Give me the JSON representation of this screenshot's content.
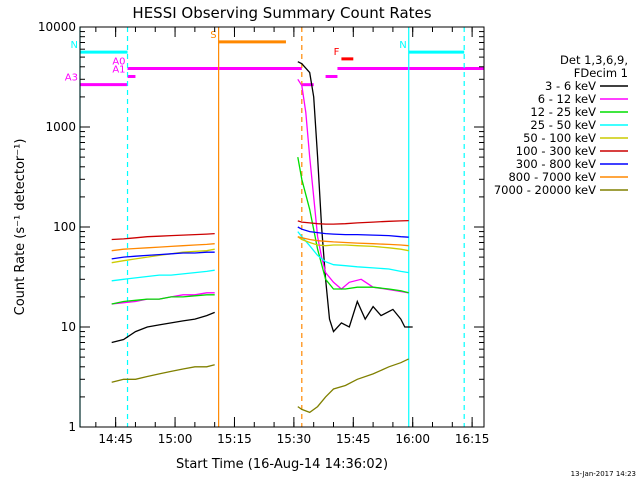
{
  "chart_data": {
    "type": "line",
    "title": "HESSI Observing Summary Count Rates",
    "xlabel": "Start Time (16-Aug-14 14:36:02)",
    "ylabel": "Count Rate (s⁻¹ detector⁻¹)",
    "yscale": "log",
    "xlim": [
      "14:36",
      "16:18"
    ],
    "ylim": [
      1,
      10000
    ],
    "x_ticks": [
      "14:45",
      "15:00",
      "15:15",
      "15:30",
      "15:45",
      "16:00",
      "16:15"
    ],
    "y_ticks": [
      "1",
      "10",
      "100",
      "1000",
      "10000"
    ],
    "footer_date": "13-Jan-2017 14:23",
    "legend": {
      "header": [
        "Det 1,3,6,9,",
        "FDecim 1"
      ],
      "placement": "right"
    },
    "series": [
      {
        "name": "3 - 6 keV",
        "color": "#000000",
        "points": [
          [
            "14:44",
            7
          ],
          [
            "14:47",
            7.5
          ],
          [
            "14:50",
            9
          ],
          [
            "14:53",
            10
          ],
          [
            "14:56",
            10.5
          ],
          [
            "14:59",
            11
          ],
          [
            "15:02",
            11.5
          ],
          [
            "15:05",
            12
          ],
          [
            "15:08",
            13
          ],
          [
            "15:10",
            14
          ],
          [
            "15:31",
            4500
          ],
          [
            "15:32",
            4300
          ],
          [
            "15:34",
            3500
          ],
          [
            "15:35",
            2000
          ],
          [
            "15:36",
            500
          ],
          [
            "15:37",
            100
          ],
          [
            "15:38",
            30
          ],
          [
            "15:39",
            12
          ],
          [
            "15:40",
            9
          ],
          [
            "15:42",
            11
          ],
          [
            "15:44",
            10
          ],
          [
            "15:46",
            18
          ],
          [
            "15:48",
            12
          ],
          [
            "15:50",
            16
          ],
          [
            "15:52",
            13
          ],
          [
            "15:55",
            15
          ],
          [
            "15:57",
            12
          ],
          [
            "15:58",
            10
          ],
          [
            "16:00",
            10
          ]
        ]
      },
      {
        "name": "6 - 12 keV",
        "color": "#ff00ff",
        "points": [
          [
            "14:44",
            17
          ],
          [
            "14:47",
            17.5
          ],
          [
            "14:50",
            18
          ],
          [
            "14:53",
            19
          ],
          [
            "14:56",
            19
          ],
          [
            "14:59",
            20
          ],
          [
            "15:02",
            21
          ],
          [
            "15:05",
            21
          ],
          [
            "15:08",
            22
          ],
          [
            "15:10",
            22
          ],
          [
            "15:31",
            3000
          ],
          [
            "15:32",
            2600
          ],
          [
            "15:33",
            1400
          ],
          [
            "15:34",
            500
          ],
          [
            "15:35",
            200
          ],
          [
            "15:36",
            80
          ],
          [
            "15:37",
            50
          ],
          [
            "15:38",
            35
          ],
          [
            "15:40",
            28
          ],
          [
            "15:42",
            24
          ],
          [
            "15:44",
            28
          ],
          [
            "15:47",
            30
          ],
          [
            "15:50",
            25
          ],
          [
            "15:53",
            24
          ],
          [
            "15:56",
            23
          ],
          [
            "15:59",
            22
          ]
        ]
      },
      {
        "name": "12 - 25 keV",
        "color": "#00dd00",
        "points": [
          [
            "14:44",
            17
          ],
          [
            "14:47",
            18
          ],
          [
            "14:50",
            18.5
          ],
          [
            "14:53",
            19
          ],
          [
            "14:56",
            19
          ],
          [
            "14:59",
            20
          ],
          [
            "15:02",
            20
          ],
          [
            "15:05",
            20.5
          ],
          [
            "15:08",
            21
          ],
          [
            "15:10",
            21
          ],
          [
            "15:31",
            500
          ],
          [
            "15:32",
            300
          ],
          [
            "15:34",
            150
          ],
          [
            "15:36",
            60
          ],
          [
            "15:38",
            30
          ],
          [
            "15:40",
            24
          ],
          [
            "15:43",
            24
          ],
          [
            "15:46",
            25
          ],
          [
            "15:50",
            25
          ],
          [
            "15:54",
            24
          ],
          [
            "15:57",
            23
          ],
          [
            "15:59",
            22
          ]
        ]
      },
      {
        "name": "25 - 50 keV",
        "color": "#00ffff",
        "points": [
          [
            "14:44",
            29
          ],
          [
            "14:47",
            30
          ],
          [
            "14:50",
            31
          ],
          [
            "14:53",
            32
          ],
          [
            "14:56",
            33
          ],
          [
            "14:59",
            33
          ],
          [
            "15:02",
            34
          ],
          [
            "15:05",
            35
          ],
          [
            "15:08",
            36
          ],
          [
            "15:10",
            37
          ],
          [
            "15:31",
            90
          ],
          [
            "15:32",
            80
          ],
          [
            "15:34",
            65
          ],
          [
            "15:36",
            52
          ],
          [
            "15:38",
            45
          ],
          [
            "15:40",
            42
          ],
          [
            "15:43",
            41
          ],
          [
            "15:46",
            40
          ],
          [
            "15:50",
            39
          ],
          [
            "15:54",
            38
          ],
          [
            "15:57",
            36
          ],
          [
            "15:59",
            35
          ]
        ]
      },
      {
        "name": "50 - 100 keV",
        "color": "#cccc00",
        "points": [
          [
            "14:44",
            44
          ],
          [
            "14:47",
            46
          ],
          [
            "14:50",
            48
          ],
          [
            "14:53",
            50
          ],
          [
            "14:56",
            52
          ],
          [
            "14:59",
            54
          ],
          [
            "15:02",
            56
          ],
          [
            "15:05",
            57
          ],
          [
            "15:08",
            58
          ],
          [
            "15:10",
            60
          ],
          [
            "15:31",
            80
          ],
          [
            "15:32",
            75
          ],
          [
            "15:34",
            70
          ],
          [
            "15:36",
            66
          ],
          [
            "15:38",
            65
          ],
          [
            "15:40",
            66
          ],
          [
            "15:43",
            66
          ],
          [
            "15:46",
            65
          ],
          [
            "15:50",
            64
          ],
          [
            "15:54",
            62
          ],
          [
            "15:57",
            60
          ],
          [
            "15:59",
            58
          ]
        ]
      },
      {
        "name": "100 - 300 keV",
        "color": "#cc0000",
        "points": [
          [
            "14:44",
            75
          ],
          [
            "14:47",
            76
          ],
          [
            "14:50",
            78
          ],
          [
            "14:53",
            80
          ],
          [
            "14:56",
            81
          ],
          [
            "14:59",
            82
          ],
          [
            "15:02",
            83
          ],
          [
            "15:05",
            84
          ],
          [
            "15:08",
            85
          ],
          [
            "15:10",
            86
          ],
          [
            "15:31",
            115
          ],
          [
            "15:32",
            112
          ],
          [
            "15:34",
            110
          ],
          [
            "15:36",
            108
          ],
          [
            "15:38",
            107
          ],
          [
            "15:40",
            107
          ],
          [
            "15:43",
            108
          ],
          [
            "15:46",
            110
          ],
          [
            "15:50",
            112
          ],
          [
            "15:54",
            114
          ],
          [
            "15:57",
            115
          ],
          [
            "15:59",
            116
          ]
        ]
      },
      {
        "name": "300 - 800 keV",
        "color": "#0000ff",
        "points": [
          [
            "14:44",
            48
          ],
          [
            "14:47",
            50
          ],
          [
            "14:50",
            51
          ],
          [
            "14:53",
            52
          ],
          [
            "14:56",
            53
          ],
          [
            "14:59",
            54
          ],
          [
            "15:02",
            55
          ],
          [
            "15:05",
            55
          ],
          [
            "15:08",
            56
          ],
          [
            "15:10",
            56
          ],
          [
            "15:31",
            100
          ],
          [
            "15:32",
            95
          ],
          [
            "15:34",
            90
          ],
          [
            "15:36",
            88
          ],
          [
            "15:38",
            86
          ],
          [
            "15:40",
            85
          ],
          [
            "15:43",
            84
          ],
          [
            "15:46",
            84
          ],
          [
            "15:50",
            83
          ],
          [
            "15:54",
            82
          ],
          [
            "15:57",
            80
          ],
          [
            "15:59",
            79
          ]
        ]
      },
      {
        "name": "800 - 7000 keV",
        "color": "#ff8800",
        "points": [
          [
            "14:44",
            58
          ],
          [
            "14:47",
            60
          ],
          [
            "14:50",
            61
          ],
          [
            "14:53",
            62
          ],
          [
            "14:56",
            63
          ],
          [
            "14:59",
            64
          ],
          [
            "15:02",
            65
          ],
          [
            "15:05",
            66
          ],
          [
            "15:08",
            67
          ],
          [
            "15:10",
            68
          ],
          [
            "15:31",
            80
          ],
          [
            "15:32",
            78
          ],
          [
            "15:34",
            75
          ],
          [
            "15:36",
            73
          ],
          [
            "15:38",
            72
          ],
          [
            "15:40",
            71
          ],
          [
            "15:43",
            70
          ],
          [
            "15:46",
            69
          ],
          [
            "15:50",
            68
          ],
          [
            "15:54",
            67
          ],
          [
            "15:57",
            66
          ],
          [
            "15:59",
            65
          ]
        ]
      },
      {
        "name": "7000 - 20000 keV",
        "color": "#808000",
        "points": [
          [
            "14:44",
            2.8
          ],
          [
            "14:47",
            3
          ],
          [
            "14:50",
            3
          ],
          [
            "14:53",
            3.2
          ],
          [
            "14:56",
            3.4
          ],
          [
            "14:59",
            3.6
          ],
          [
            "15:02",
            3.8
          ],
          [
            "15:05",
            4
          ],
          [
            "15:08",
            4
          ],
          [
            "15:10",
            4.2
          ],
          [
            "15:31",
            1.6
          ],
          [
            "15:32",
            1.5
          ],
          [
            "15:34",
            1.4
          ],
          [
            "15:36",
            1.6
          ],
          [
            "15:38",
            2
          ],
          [
            "15:40",
            2.4
          ],
          [
            "15:43",
            2.6
          ],
          [
            "15:46",
            3
          ],
          [
            "15:50",
            3.4
          ],
          [
            "15:54",
            4
          ],
          [
            "15:57",
            4.4
          ],
          [
            "15:59",
            4.8
          ]
        ]
      }
    ],
    "vertical_lines": [
      {
        "time": "14:36",
        "color": "#00ffff",
        "style": "solid"
      },
      {
        "time": "14:48",
        "color": "#00ffff",
        "style": "dashed"
      },
      {
        "time": "15:11",
        "color": "#ff8800",
        "style": "solid"
      },
      {
        "time": "15:32",
        "color": "#ff8800",
        "style": "dashed"
      },
      {
        "time": "15:59",
        "color": "#00ffff",
        "style": "solid"
      },
      {
        "time": "16:13",
        "color": "#00ffff",
        "style": "dashed"
      }
    ],
    "flag_bars": [
      {
        "label": "N",
        "color": "#00ffff",
        "t0": "14:36",
        "t1": "14:48",
        "y": 5600
      },
      {
        "label": "N",
        "color": "#00ffff",
        "t0": "15:59",
        "t1": "16:13",
        "y": 5600
      },
      {
        "label": "S",
        "color": "#ff8800",
        "t0": "15:11",
        "t1": "15:28",
        "y": 7100
      },
      {
        "label": "A0",
        "color": "#ff00ff",
        "t0": "14:48",
        "t1": "15:32",
        "y": 3850
      },
      {
        "label": "A1",
        "color": "#ff00ff",
        "t0": "14:48",
        "t1": "14:50",
        "y": 3200
      },
      {
        "label": "A3",
        "color": "#ff00ff",
        "t0": "14:36",
        "t1": "14:48",
        "y": 2650
      },
      {
        "label": "",
        "color": "#ff00ff",
        "t0": "15:32",
        "t1": "15:35",
        "y": 2650
      },
      {
        "label": "",
        "color": "#ff00ff",
        "t0": "15:38",
        "t1": "15:41",
        "y": 3200
      },
      {
        "label": "",
        "color": "#ff00ff",
        "t0": "15:41",
        "t1": "16:18",
        "y": 3850
      },
      {
        "label": "F",
        "color": "#ff0000",
        "t0": "15:42",
        "t1": "15:45",
        "y": 4800
      }
    ]
  }
}
